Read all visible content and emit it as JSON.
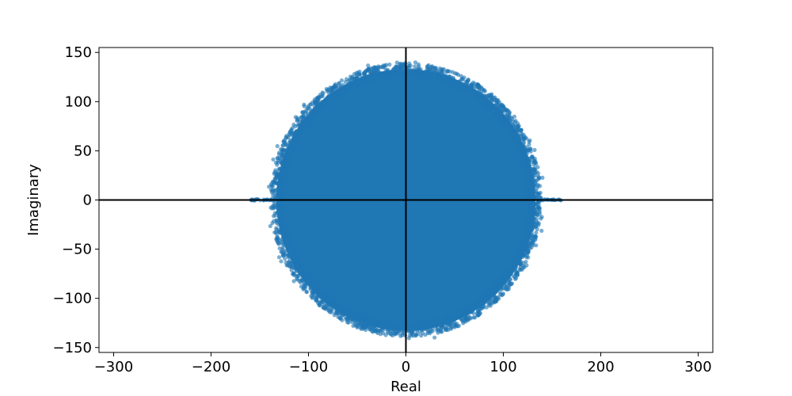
{
  "chart_data": {
    "type": "scatter",
    "title": "",
    "xlabel": "Real",
    "ylabel": "Imaginary",
    "xlim": [
      -315,
      315
    ],
    "ylim": [
      -155,
      155
    ],
    "xticks": [
      -300,
      -200,
      -100,
      0,
      100,
      200,
      300
    ],
    "yticks": [
      -150,
      -100,
      -50,
      0,
      50,
      100,
      150
    ],
    "xtick_labels": [
      "−300",
      "−200",
      "−100",
      "0",
      "100",
      "200",
      "300"
    ],
    "ytick_labels": [
      "−150",
      "−100",
      "−50",
      "0",
      "50",
      "100",
      "150"
    ],
    "grid": false,
    "reference_lines": {
      "x": 0,
      "y": 0
    },
    "series": [
      {
        "distribution": "approximately uniform disk (circular law) centered at origin",
        "radius": 135,
        "real_axis_outliers_range": [
          -160,
          160
        ],
        "color": "#1f77b4",
        "marker_alpha": 0.6
      }
    ]
  }
}
